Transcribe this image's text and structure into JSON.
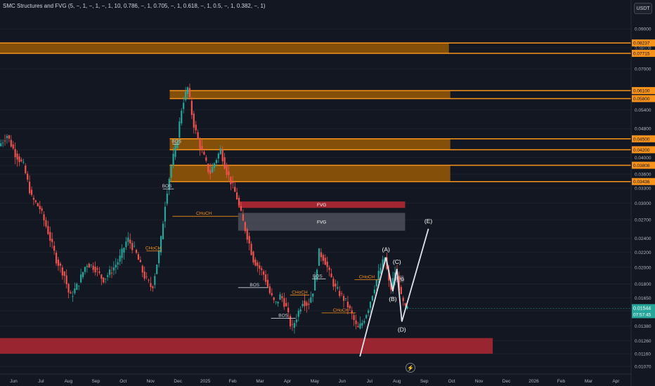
{
  "indicator": {
    "label": "SMC Structures and FVG (5, −, 1, −, 1, −, 1, 10, 0.786, −, 1, 0.705, −, 1, 0.618, −, 1, 0.5, −, 1, 0.382, −, 1)"
  },
  "currency": "USDT",
  "colors": {
    "background": "#131722",
    "up": "#26a69a",
    "down": "#ef5350",
    "zone_orange": "#f7931a",
    "zone_red": "#b22833",
    "fvg_gray": "#4a4d57",
    "wave_line": "#e0e3eb",
    "current_price_bg": "#26a69a",
    "grid": "#1e222d"
  },
  "chart_data": {
    "type": "candlestick",
    "y_scale": "log",
    "ylim": [
      0.0102,
      0.098
    ],
    "x_range_months": [
      0,
      16.6
    ],
    "y_ticks": [
      "0.09000",
      "0.08000",
      "0.07000",
      "0.05400",
      "0.04800",
      "0.04200",
      "0.04000",
      "0.03800",
      "0.03600",
      "0.03300",
      "0.03000",
      "0.02700",
      "0.02400",
      "0.02200",
      "0.02000",
      "0.01800",
      "0.01650",
      "0.01520",
      "0.01380",
      "0.01260",
      "0.01160",
      "0.01070"
    ],
    "y_tick_values": [
      0.09,
      0.08,
      0.07,
      0.054,
      0.048,
      0.042,
      0.04,
      0.038,
      0.036,
      0.033,
      0.03,
      0.027,
      0.024,
      0.022,
      0.02,
      0.018,
      0.0165,
      0.0152,
      0.0138,
      0.0126,
      0.0116,
      0.0107
    ],
    "x_ticks": [
      {
        "label": "Jun",
        "m": 0.5
      },
      {
        "label": "Jul",
        "m": 1.5
      },
      {
        "label": "Aug",
        "m": 2.5
      },
      {
        "label": "Sep",
        "m": 3.5
      },
      {
        "label": "Oct",
        "m": 4.5
      },
      {
        "label": "Nov",
        "m": 5.5
      },
      {
        "label": "Dec",
        "m": 6.5
      },
      {
        "label": "2025",
        "m": 7.5
      },
      {
        "label": "Feb",
        "m": 8.5
      },
      {
        "label": "Mar",
        "m": 9.5
      },
      {
        "label": "Apr",
        "m": 10.5
      },
      {
        "label": "May",
        "m": 11.5
      },
      {
        "label": "Jun",
        "m": 12.5
      },
      {
        "label": "Jul",
        "m": 13.5
      },
      {
        "label": "Aug",
        "m": 14.5
      },
      {
        "label": "Sep",
        "m": 15.5
      },
      {
        "label": "Oct",
        "m": 16.5
      },
      {
        "label": "Nov",
        "m": 17.5
      },
      {
        "label": "Dec",
        "m": 18.5
      },
      {
        "label": "2026",
        "m": 19.5
      },
      {
        "label": "Feb",
        "m": 20.5
      },
      {
        "label": "Mar",
        "m": 21.5
      },
      {
        "label": "Apr",
        "m": 22.5
      }
    ],
    "price_path": [
      [
        0.0,
        0.043
      ],
      [
        0.3,
        0.046
      ],
      [
        0.6,
        0.041
      ],
      [
        0.9,
        0.038
      ],
      [
        1.2,
        0.031
      ],
      [
        1.5,
        0.029
      ],
      [
        1.8,
        0.025
      ],
      [
        2.1,
        0.021
      ],
      [
        2.4,
        0.019
      ],
      [
        2.6,
        0.0165
      ],
      [
        2.9,
        0.018
      ],
      [
        3.2,
        0.0205
      ],
      [
        3.5,
        0.02
      ],
      [
        3.8,
        0.0185
      ],
      [
        4.1,
        0.0195
      ],
      [
        4.4,
        0.021
      ],
      [
        4.7,
        0.024
      ],
      [
        5.0,
        0.022
      ],
      [
        5.3,
        0.019
      ],
      [
        5.6,
        0.0175
      ],
      [
        5.9,
        0.023
      ],
      [
        6.1,
        0.031
      ],
      [
        6.3,
        0.038
      ],
      [
        6.5,
        0.044
      ],
      [
        6.7,
        0.056
      ],
      [
        6.9,
        0.062
      ],
      [
        7.1,
        0.05
      ],
      [
        7.3,
        0.044
      ],
      [
        7.5,
        0.04
      ],
      [
        7.7,
        0.036
      ],
      [
        7.9,
        0.039
      ],
      [
        8.1,
        0.042
      ],
      [
        8.3,
        0.037
      ],
      [
        8.5,
        0.034
      ],
      [
        8.7,
        0.031
      ],
      [
        8.9,
        0.027
      ],
      [
        9.1,
        0.024
      ],
      [
        9.3,
        0.021
      ],
      [
        9.5,
        0.02
      ],
      [
        9.7,
        0.019
      ],
      [
        9.9,
        0.017
      ],
      [
        10.1,
        0.0158
      ],
      [
        10.3,
        0.0168
      ],
      [
        10.5,
        0.0155
      ],
      [
        10.7,
        0.0135
      ],
      [
        10.9,
        0.0148
      ],
      [
        11.1,
        0.0162
      ],
      [
        11.3,
        0.0158
      ],
      [
        11.5,
        0.0175
      ],
      [
        11.7,
        0.022
      ],
      [
        11.9,
        0.021
      ],
      [
        12.1,
        0.019
      ],
      [
        12.3,
        0.0175
      ],
      [
        12.5,
        0.0168
      ],
      [
        12.7,
        0.016
      ],
      [
        12.9,
        0.0148
      ],
      [
        13.1,
        0.0135
      ],
      [
        13.3,
        0.0142
      ],
      [
        13.5,
        0.0155
      ],
      [
        13.7,
        0.0175
      ],
      [
        13.9,
        0.0195
      ],
      [
        14.1,
        0.0213
      ],
      [
        14.3,
        0.0172
      ],
      [
        14.5,
        0.0198
      ],
      [
        14.7,
        0.0165
      ],
      [
        14.85,
        0.0154
      ]
    ],
    "current_price": {
      "value": 0.01544,
      "label": "0.01544",
      "timer": "07:57:45"
    },
    "resistance_zones": [
      {
        "top": 0.08237,
        "bottom": 0.07715,
        "start_m": 0,
        "end_m": 16.4,
        "top_label": "0.08237",
        "mid_label": "0.08000",
        "bottom_label": "0.07715"
      },
      {
        "top": 0.061,
        "bottom": 0.058,
        "start_m": 6.2,
        "end_m": 16.45,
        "top_label": "0.06100",
        "bottom_label": "0.05800"
      },
      {
        "top": 0.045,
        "bottom": 0.042,
        "start_m": 6.2,
        "end_m": 16.45,
        "top_label": "0.04500",
        "bottom_label": "0.04200"
      },
      {
        "top": 0.03808,
        "bottom": 0.03436,
        "start_m": 6.2,
        "end_m": 16.45,
        "top_label": "0.03808",
        "bottom_label": "0.03436"
      }
    ],
    "support_zone": {
      "top": 0.0128,
      "bottom": 0.0116,
      "start_m": 0,
      "end_m": 18.0
    },
    "fvg_zones": [
      {
        "label": "FVG",
        "top": 0.0303,
        "bottom": 0.0291,
        "start_m": 8.7,
        "end_m": 14.8,
        "kind": "bearish"
      },
      {
        "label": "FVG",
        "top": 0.0282,
        "bottom": 0.0252,
        "start_m": 8.7,
        "end_m": 14.8,
        "kind": "neutral"
      },
      {
        "label": "FVG",
        "top": 0.019,
        "bottom": 0.0182,
        "start_m": 14.45,
        "end_m": 14.75,
        "kind": "neutral"
      }
    ],
    "structure_labels": [
      {
        "text": "BOS",
        "m": 6.1,
        "y": 0.0328,
        "color": "#d1d4dc",
        "line_start": 5.95,
        "line_end": 6.35
      },
      {
        "text": "BOS",
        "m": 6.45,
        "y": 0.0435,
        "color": "#d1d4dc",
        "line_start": 6.3,
        "line_end": 6.55
      },
      {
        "text": "CHoCH",
        "m": 7.45,
        "y": 0.0276,
        "color": "#f7931a",
        "line_start": 6.3,
        "line_end": 8.7
      },
      {
        "text": "CHoCH",
        "m": 5.6,
        "y": 0.0222,
        "color": "#f7931a",
        "line_start": 5.35,
        "line_end": 5.9
      },
      {
        "text": "BOS",
        "m": 9.3,
        "y": 0.0176,
        "color": "#d1d4dc",
        "line_start": 8.7,
        "line_end": 9.8
      },
      {
        "text": "BOS",
        "m": 10.35,
        "y": 0.0145,
        "color": "#d1d4dc",
        "line_start": 9.9,
        "line_end": 10.8
      },
      {
        "text": "CHoCH",
        "m": 10.95,
        "y": 0.0168,
        "color": "#f7931a",
        "line_start": 10.6,
        "line_end": 11.3
      },
      {
        "text": "BOS",
        "m": 11.6,
        "y": 0.0186,
        "color": "#d1d4dc",
        "line_start": 11.4,
        "line_end": 11.9
      },
      {
        "text": "CHoCH",
        "m": 12.45,
        "y": 0.015,
        "color": "#f7931a",
        "line_start": 11.75,
        "line_end": 13.0
      },
      {
        "text": "CHoCH",
        "m": 13.4,
        "y": 0.0185,
        "color": "#f7931a",
        "line_start": 12.95,
        "line_end": 13.9
      }
    ],
    "wave_points": [
      {
        "label": "",
        "m": 13.15,
        "y": 0.0114
      },
      {
        "label": "(A)",
        "m": 14.1,
        "y": 0.0213
      },
      {
        "label": "(B)",
        "m": 14.35,
        "y": 0.0172
      },
      {
        "label": "(C)",
        "m": 14.5,
        "y": 0.0198
      },
      {
        "label": "(D)",
        "m": 14.68,
        "y": 0.0142
      },
      {
        "label": "(E)",
        "m": 15.65,
        "y": 0.0255
      }
    ]
  }
}
